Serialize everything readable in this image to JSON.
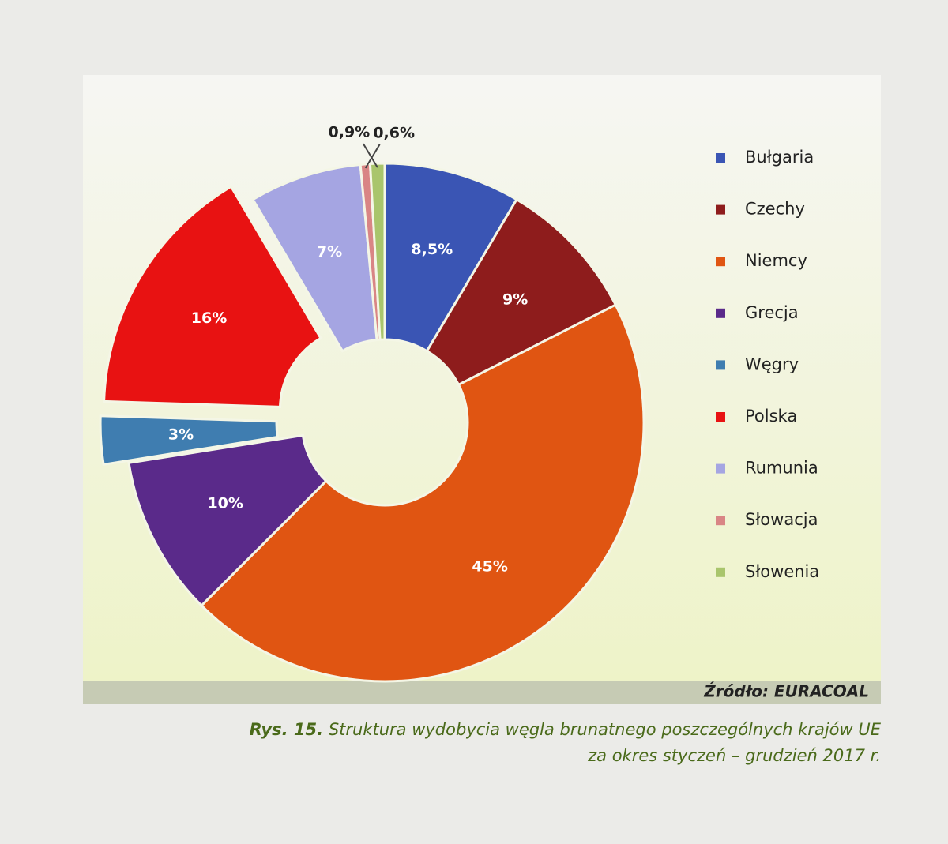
{
  "chart_data": {
    "type": "donut",
    "categories": [
      "Bułgaria",
      "Czechy",
      "Niemcy",
      "Grecja",
      "Węgry",
      "Polska",
      "Rumunia",
      "Słowacja",
      "Słowenia"
    ],
    "values": [
      8.5,
      9,
      45,
      10,
      3,
      16,
      7,
      0.6,
      0.9
    ],
    "value_labels": [
      "8,5%",
      "9%",
      "45%",
      "10%",
      "3%",
      "16%",
      "7%",
      "0,6%",
      "0,9%"
    ],
    "colors": [
      "#3a55b4",
      "#8e1c1c",
      "#e05512",
      "#5a2a8a",
      "#3f7db0",
      "#e81212",
      "#a5a5e2",
      "#d98585",
      "#a9c56c"
    ],
    "explode": [
      false,
      false,
      false,
      false,
      true,
      true,
      false,
      false,
      false
    ],
    "legend": "right",
    "source": "Źródło: EURACOAL",
    "caption_label": "Rys. 15.",
    "caption": [
      "Struktura wydobycia węgla brunatnego poszczególnych krajów UE",
      "za okres styczeń – grudzień 2017 r."
    ]
  }
}
